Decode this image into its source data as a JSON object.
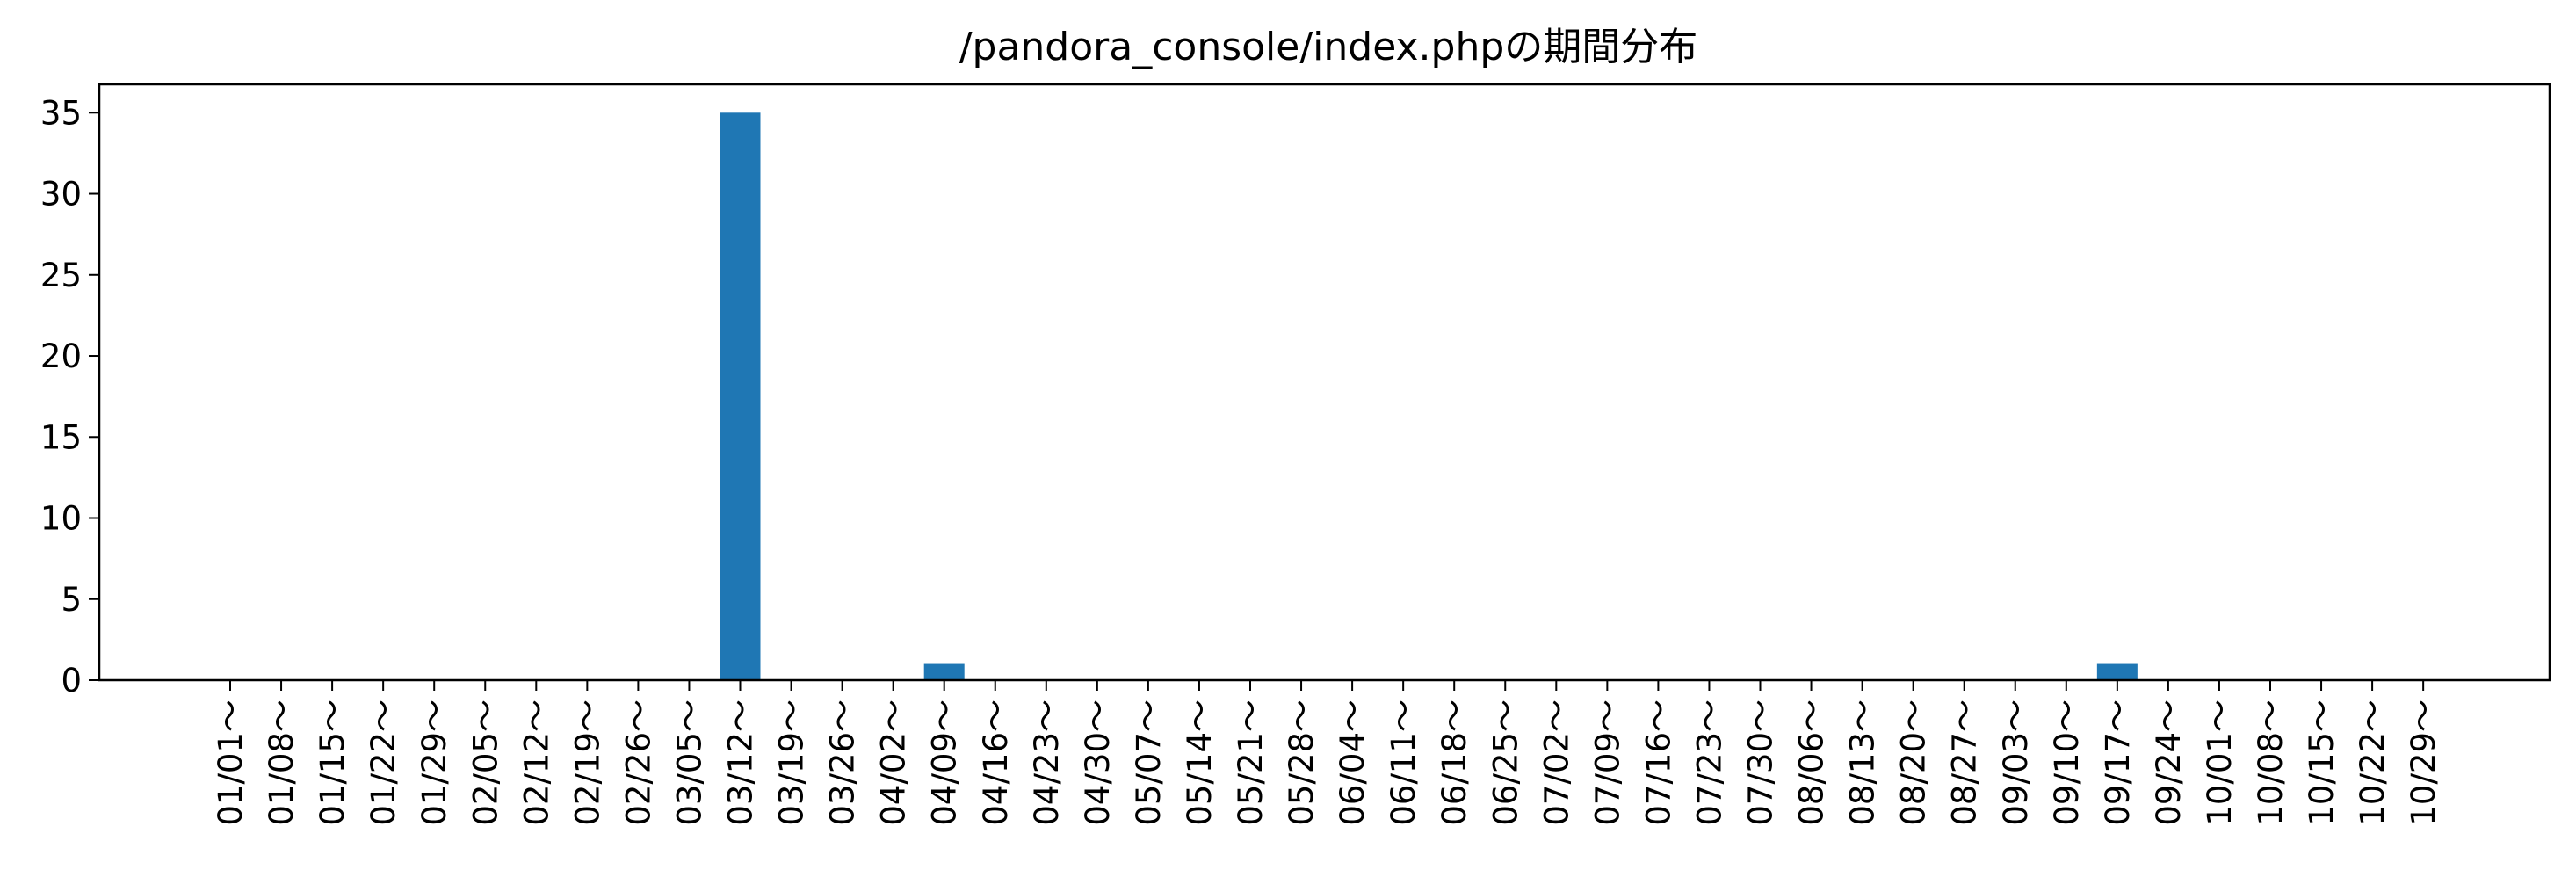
{
  "chart_data": {
    "type": "bar",
    "title": "/pandora_console/index.phpの期間分布",
    "xlabel": "",
    "ylabel": "",
    "categories": [
      "01/01～",
      "01/08～",
      "01/15～",
      "01/22～",
      "01/29～",
      "02/05～",
      "02/12～",
      "02/19～",
      "02/26～",
      "03/05～",
      "03/12～",
      "03/19～",
      "03/26～",
      "04/02～",
      "04/09～",
      "04/16～",
      "04/23～",
      "04/30～",
      "05/07～",
      "05/14～",
      "05/21～",
      "05/28～",
      "06/04～",
      "06/11～",
      "06/18～",
      "06/25～",
      "07/02～",
      "07/09～",
      "07/16～",
      "07/23～",
      "07/30～",
      "08/06～",
      "08/13～",
      "08/20～",
      "08/27～",
      "09/03～",
      "09/10～",
      "09/17～",
      "09/24～",
      "10/01～",
      "10/08～",
      "10/15～",
      "10/22～",
      "10/29～"
    ],
    "values": [
      0,
      0,
      0,
      0,
      0,
      0,
      0,
      0,
      0,
      0,
      35,
      0,
      0,
      0,
      1,
      0,
      0,
      0,
      0,
      0,
      0,
      0,
      0,
      0,
      0,
      0,
      0,
      0,
      0,
      0,
      0,
      0,
      0,
      0,
      0,
      0,
      0,
      1,
      0,
      0,
      0,
      0,
      0,
      0
    ],
    "ylim": [
      0,
      36.75
    ],
    "yticks": [
      0,
      5,
      10,
      15,
      20,
      25,
      30,
      35
    ],
    "grid": false,
    "legend": "none",
    "bar_color": "#1f77b4"
  }
}
